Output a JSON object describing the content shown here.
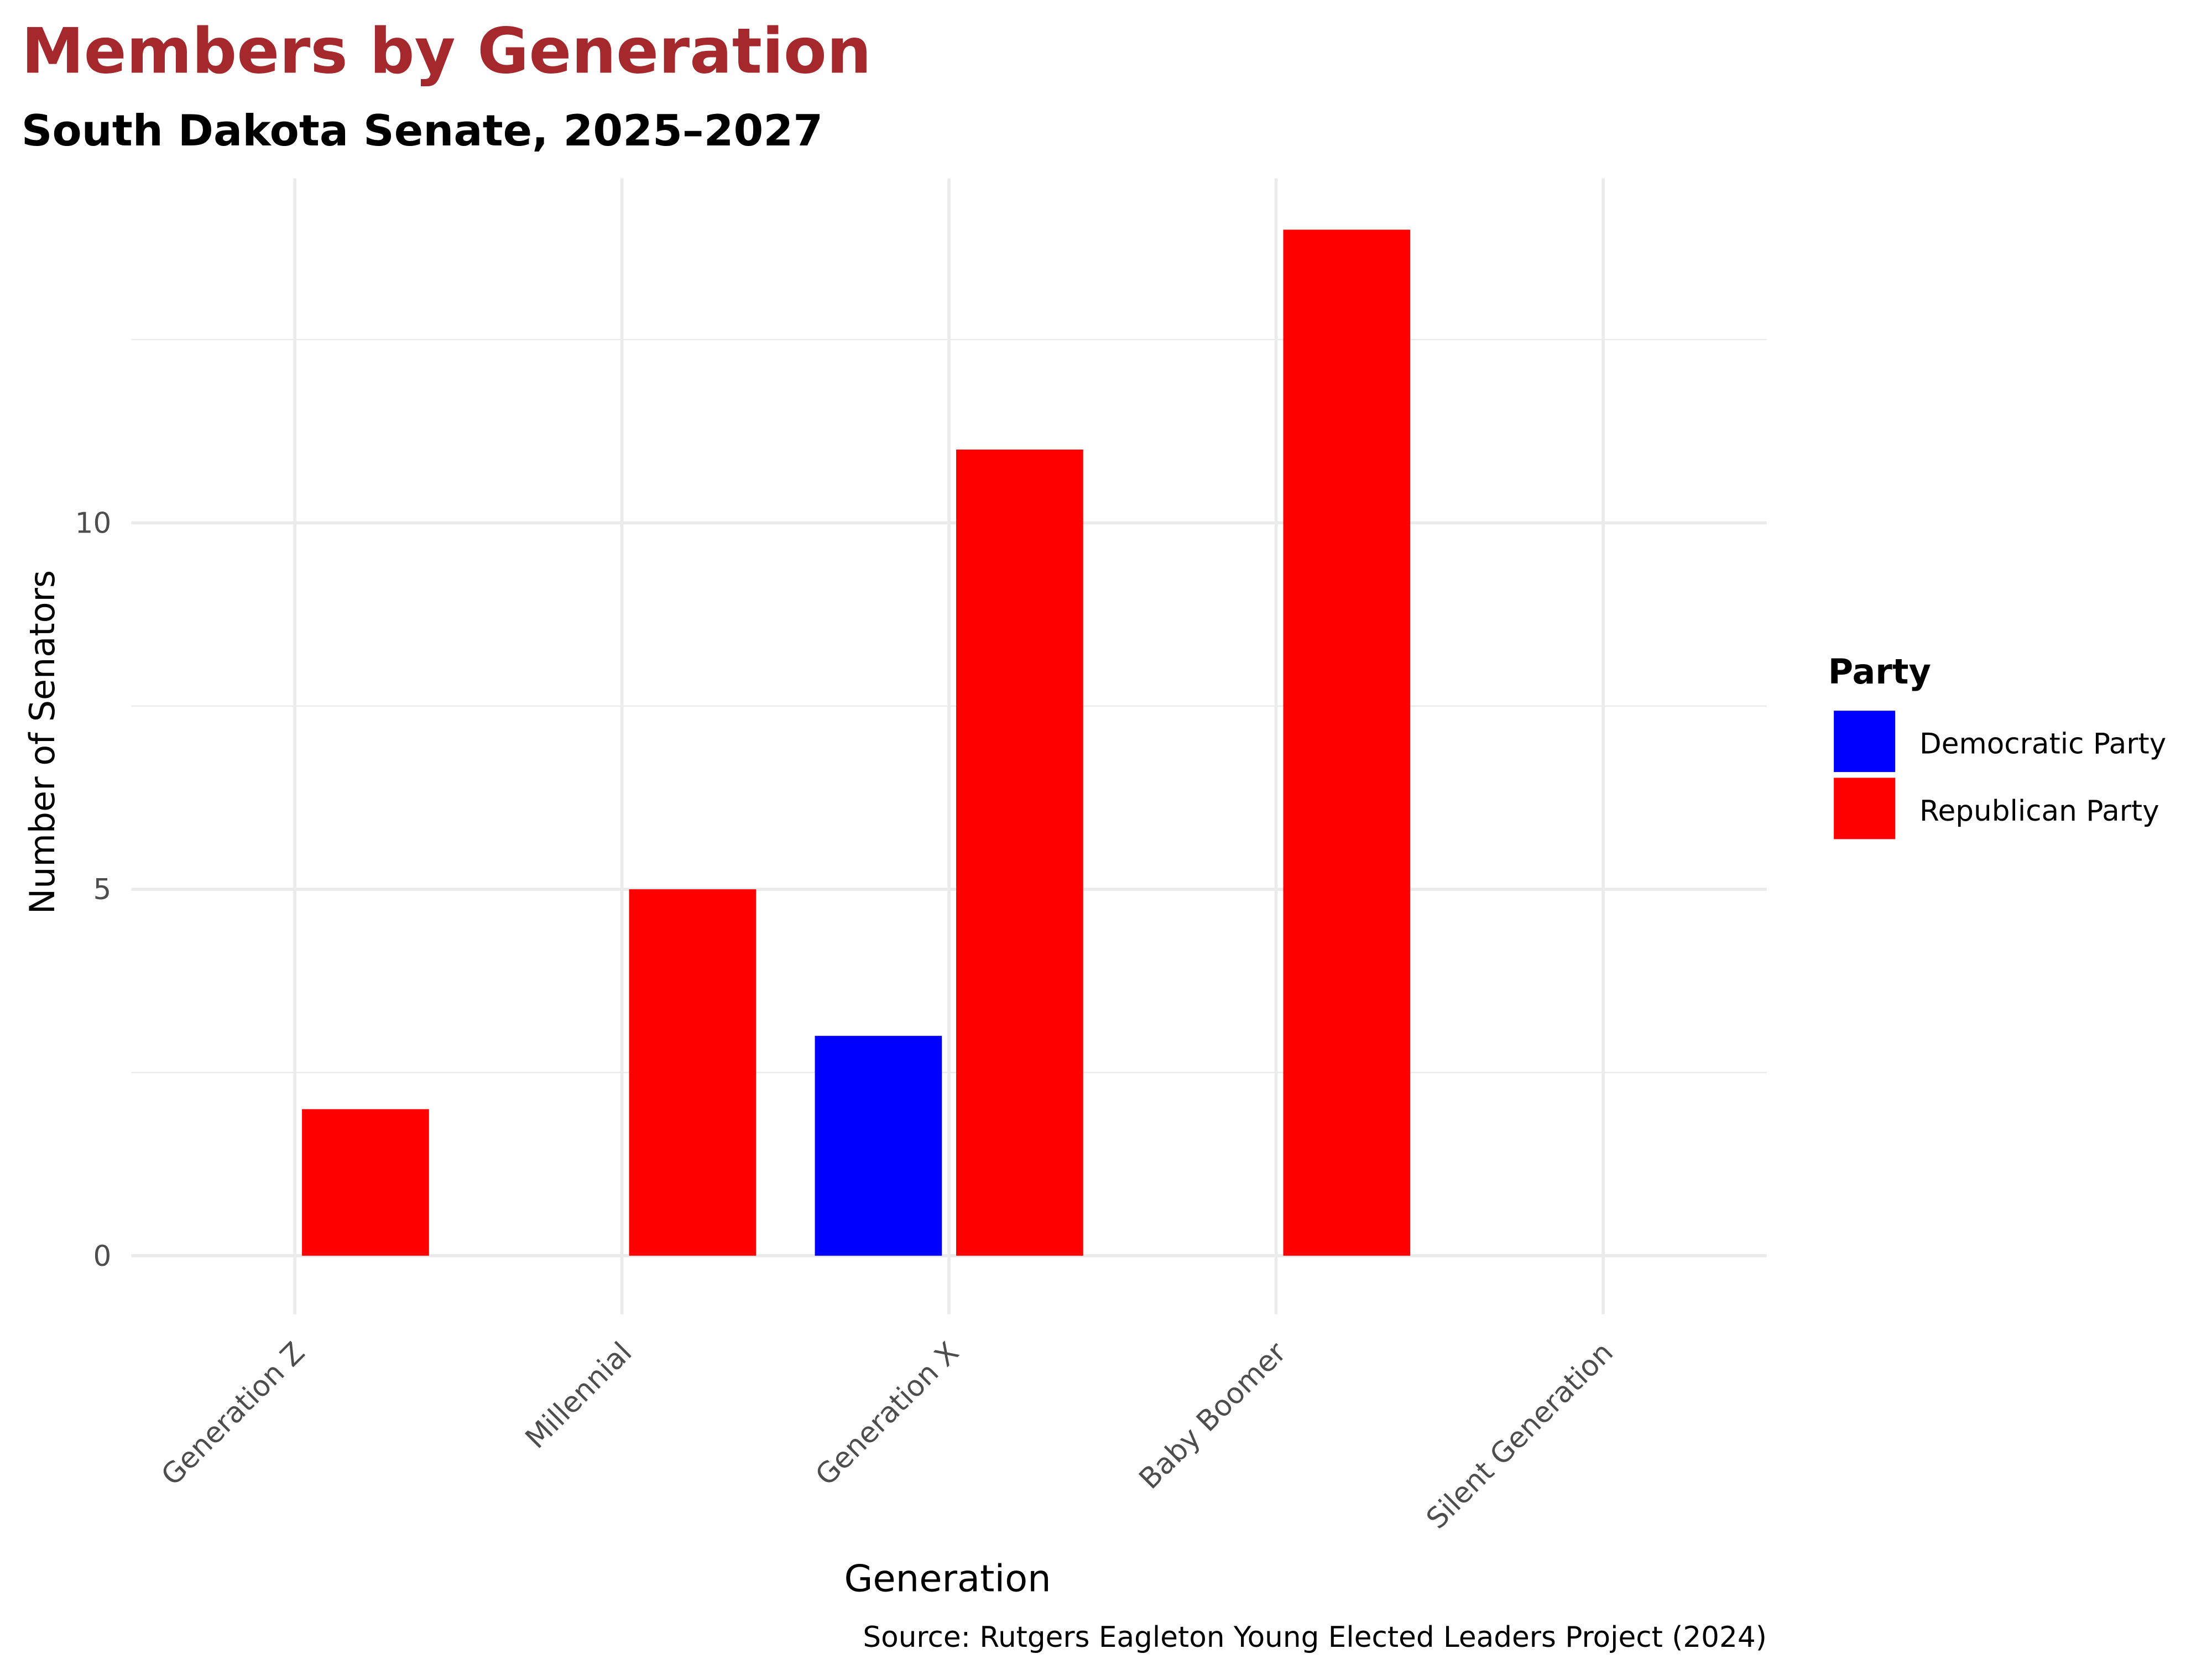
{
  "chart_data": {
    "type": "bar",
    "title": "Members by Generation",
    "subtitle": "South Dakota Senate, 2025–2027",
    "xlabel": "Generation",
    "ylabel": "Number of Senators",
    "caption": "Source: Rutgers Eagleton Young Elected Leaders Project (2024)",
    "categories": [
      "Generation Z",
      "Millennial",
      "Generation X",
      "Baby Boomer",
      "Silent Generation"
    ],
    "series": [
      {
        "name": "Democratic Party",
        "color": "#0000ff",
        "values": [
          null,
          null,
          3,
          null,
          null
        ]
      },
      {
        "name": "Republican Party",
        "color": "#ff0000",
        "values": [
          2,
          5,
          11,
          14,
          null
        ]
      }
    ],
    "ylim": [
      -0.8,
      14.7
    ],
    "yticks": [
      0,
      5,
      10
    ],
    "grid": true,
    "legend": {
      "title": "Party",
      "placement": "right"
    },
    "title_color": "#a4282c"
  }
}
